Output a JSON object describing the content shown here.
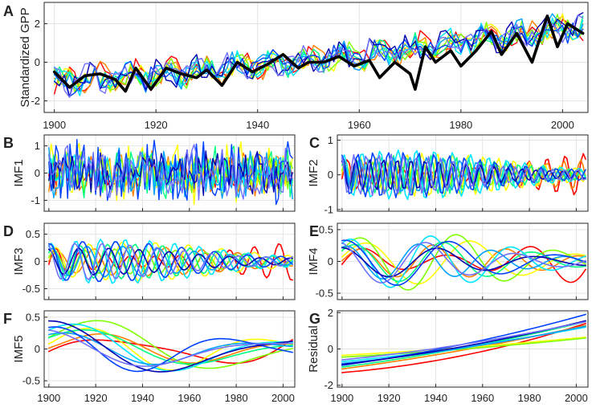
{
  "colors": {
    "frame": "#262626",
    "grid": "#e4e4e4",
    "mean": "#000000",
    "series": [
      "#ff0000",
      "#ff8000",
      "#ffff00",
      "#7fff00",
      "#00ff80",
      "#00e5ff",
      "#00a0ff",
      "#0040ff",
      "#0000b0",
      "#7070ff"
    ]
  },
  "chart_data": [
    {
      "id": "A",
      "letter": "A",
      "type": "line",
      "title": "",
      "xlabel": "",
      "ylabel": "Standardized GPP",
      "x": [
        1900,
        2004
      ],
      "xlim": [
        1898,
        2005
      ],
      "ylim": [
        -2.6,
        3.1
      ],
      "xticks": [
        1900,
        1920,
        1940,
        1960,
        1980,
        2000
      ],
      "xtick_labels": [
        "1900",
        "1920",
        "1940",
        "1960",
        "1980",
        "2000"
      ],
      "yticks": [
        -2,
        0,
        2
      ],
      "ytick_labels": [
        "-2",
        "0",
        "2"
      ],
      "style": "noisy",
      "amplitude": 0.9,
      "trend": [
        -1.0,
        1.9
      ],
      "n": 105,
      "mean_line": true,
      "mean_points": [
        [
          1900,
          -0.5
        ],
        [
          1903,
          -1.3
        ],
        [
          1906,
          -0.7
        ],
        [
          1909,
          -0.6
        ],
        [
          1912,
          -0.9
        ],
        [
          1914,
          -1.5
        ],
        [
          1916,
          -0.3
        ],
        [
          1919,
          -1.4
        ],
        [
          1922,
          -0.3
        ],
        [
          1925,
          -0.6
        ],
        [
          1928,
          -0.8
        ],
        [
          1930,
          -0.4
        ],
        [
          1933,
          -1.2
        ],
        [
          1936,
          0.0
        ],
        [
          1939,
          -0.5
        ],
        [
          1942,
          -0.1
        ],
        [
          1945,
          0.4
        ],
        [
          1948,
          -0.3
        ],
        [
          1950,
          0.0
        ],
        [
          1953,
          0.0
        ],
        [
          1956,
          0.3
        ],
        [
          1959,
          -0.2
        ],
        [
          1962,
          0.1
        ],
        [
          1964,
          -0.8
        ],
        [
          1967,
          0.0
        ],
        [
          1970,
          -0.6
        ],
        [
          1971,
          -1.4
        ],
        [
          1973,
          0.8
        ],
        [
          1975,
          0.0
        ],
        [
          1978,
          0.6
        ],
        [
          1980,
          -0.2
        ],
        [
          1983,
          0.6
        ],
        [
          1986,
          1.6
        ],
        [
          1988,
          0.4
        ],
        [
          1991,
          1.5
        ],
        [
          1994,
          0.0
        ],
        [
          1997,
          2.4
        ],
        [
          1999,
          0.8
        ],
        [
          2001,
          2.0
        ],
        [
          2004,
          1.5
        ]
      ]
    },
    {
      "id": "B",
      "letter": "B",
      "type": "line",
      "title": "",
      "xlabel": "",
      "ylabel": "IMF1",
      "x": [
        1900,
        2004
      ],
      "xlim": [
        1898,
        2005
      ],
      "ylim": [
        -1.4,
        1.4
      ],
      "xticks": [
        1900,
        1920,
        1940,
        1960,
        1980,
        2000
      ],
      "xtick_labels": [],
      "yticks": [
        -1,
        0,
        1
      ],
      "ytick_labels": [
        "-1",
        "0",
        "1"
      ],
      "style": "noisy",
      "amplitude": 0.65,
      "period": 3,
      "n": 105
    },
    {
      "id": "C",
      "letter": "C",
      "type": "line",
      "title": "",
      "xlabel": "",
      "ylabel": "IMF2",
      "x": [
        1900,
        2004
      ],
      "xlim": [
        1898,
        2005
      ],
      "ylim": [
        -1.05,
        1.15
      ],
      "xticks": [
        1900,
        1920,
        1940,
        1960,
        1980,
        2000
      ],
      "xtick_labels": [],
      "yticks": [
        -1,
        0,
        1
      ],
      "ytick_labels": [
        "-1",
        "0",
        "1"
      ],
      "style": "osc",
      "amplitude": 0.5,
      "period": 6,
      "n": 105
    },
    {
      "id": "D",
      "letter": "D",
      "type": "line",
      "title": "",
      "xlabel": "",
      "ylabel": "IMF3",
      "x": [
        1900,
        2004
      ],
      "xlim": [
        1898,
        2005
      ],
      "ylim": [
        -0.7,
        0.7
      ],
      "xticks": [
        1900,
        1920,
        1940,
        1960,
        1980,
        2000
      ],
      "xtick_labels": [],
      "yticks": [
        -0.5,
        0,
        0.5
      ],
      "ytick_labels": [
        "-0.5",
        "0",
        "0.5"
      ],
      "style": "osc",
      "amplitude": 0.3,
      "period": 12,
      "n": 105
    },
    {
      "id": "E",
      "letter": "E",
      "type": "line",
      "title": "",
      "xlabel": "",
      "ylabel": "IMF4",
      "x": [
        1900,
        2004
      ],
      "xlim": [
        1898,
        2005
      ],
      "ylim": [
        -0.6,
        0.6
      ],
      "xticks": [
        1900,
        1920,
        1940,
        1960,
        1980,
        2000
      ],
      "xtick_labels": [],
      "yticks": [
        -0.5,
        0,
        0.5
      ],
      "ytick_labels": [
        "-0.5",
        "0",
        "0.5"
      ],
      "style": "osc",
      "amplitude": 0.32,
      "period": 36,
      "n": 105
    },
    {
      "id": "F",
      "letter": "F",
      "type": "line",
      "title": "",
      "xlabel": "",
      "ylabel": "IMF5",
      "x": [
        1900,
        2004
      ],
      "xlim": [
        1898,
        2005
      ],
      "ylim": [
        -0.6,
        0.6
      ],
      "xticks": [
        1900,
        1920,
        1940,
        1960,
        1980,
        2000
      ],
      "xtick_labels": [
        "1900",
        "1920",
        "1940",
        "1960",
        "1980",
        "2000"
      ],
      "yticks": [
        -0.5,
        0,
        0.5
      ],
      "ytick_labels": [
        "-0.5",
        "0",
        "0.5"
      ],
      "style": "osc",
      "amplitude": 0.35,
      "period": 90,
      "n": 105
    },
    {
      "id": "G",
      "letter": "G",
      "type": "line",
      "title": "",
      "xlabel": "",
      "ylabel": "Residual",
      "x": [
        1900,
        2004
      ],
      "xlim": [
        1898,
        2005
      ],
      "ylim": [
        -2.1,
        2.1
      ],
      "xticks": [
        1900,
        1920,
        1940,
        1960,
        1980,
        2000
      ],
      "xtick_labels": [
        "1900",
        "1920",
        "1940",
        "1960",
        "1980",
        "2000"
      ],
      "yticks": [
        -2,
        0,
        2
      ],
      "ytick_labels": [
        "-2",
        "0",
        "2"
      ],
      "style": "trend",
      "n": 40,
      "trend_ranges": [
        [
          -1.3,
          1.4
        ],
        [
          -1.1,
          1.3
        ],
        [
          -0.35,
          0.65
        ],
        [
          -0.45,
          0.6
        ],
        [
          -1.0,
          1.5
        ],
        [
          -0.7,
          1.2
        ],
        [
          -0.8,
          1.25
        ],
        [
          -0.9,
          1.9
        ],
        [
          -0.85,
          1.55
        ],
        [
          -0.6,
          1.5
        ]
      ]
    }
  ]
}
